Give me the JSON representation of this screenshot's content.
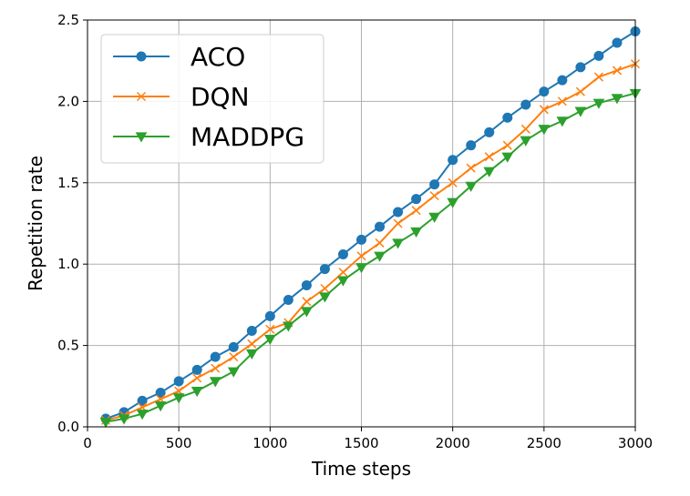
{
  "chart_data": {
    "type": "line",
    "title": "",
    "xlabel": "Time steps",
    "ylabel": "Repetition rate",
    "xlim": [
      0,
      3000
    ],
    "ylim": [
      0,
      2.5
    ],
    "xticks": [
      0,
      500,
      1000,
      1500,
      2000,
      2500,
      3000
    ],
    "xtick_labels": [
      "0",
      "500",
      "1000",
      "1500",
      "2000",
      "2500",
      "3000"
    ],
    "yticks": [
      0,
      0.5,
      1.0,
      1.5,
      2.0,
      2.5
    ],
    "ytick_labels": [
      "0.0",
      "0.5",
      "1.0",
      "1.5",
      "2.0",
      "2.5"
    ],
    "grid": true,
    "legend_position": "top-left",
    "x": [
      100,
      200,
      300,
      400,
      500,
      600,
      700,
      800,
      900,
      1000,
      1100,
      1200,
      1300,
      1400,
      1500,
      1600,
      1700,
      1800,
      1900,
      2000,
      2100,
      2200,
      2300,
      2400,
      2500,
      2600,
      2700,
      2800,
      2900,
      3000
    ],
    "series": [
      {
        "name": "ACO",
        "color": "#1f77b4",
        "marker": "circle",
        "values": [
          0.05,
          0.09,
          0.16,
          0.21,
          0.28,
          0.35,
          0.43,
          0.49,
          0.59,
          0.68,
          0.78,
          0.87,
          0.97,
          1.06,
          1.15,
          1.23,
          1.32,
          1.4,
          1.49,
          1.64,
          1.73,
          1.81,
          1.9,
          1.98,
          2.06,
          2.13,
          2.21,
          2.28,
          2.36,
          2.43
        ]
      },
      {
        "name": "DQN",
        "color": "#ff7f0e",
        "marker": "x",
        "values": [
          0.04,
          0.07,
          0.12,
          0.17,
          0.22,
          0.3,
          0.36,
          0.43,
          0.51,
          0.6,
          0.64,
          0.77,
          0.85,
          0.95,
          1.05,
          1.13,
          1.25,
          1.33,
          1.42,
          1.5,
          1.59,
          1.66,
          1.73,
          1.83,
          1.95,
          2.0,
          2.06,
          2.15,
          2.19,
          2.23
        ]
      },
      {
        "name": "MADDPG",
        "color": "#2ca02c",
        "marker": "triangle-down",
        "values": [
          0.03,
          0.05,
          0.08,
          0.13,
          0.18,
          0.22,
          0.28,
          0.34,
          0.45,
          0.54,
          0.62,
          0.71,
          0.8,
          0.9,
          0.98,
          1.05,
          1.13,
          1.2,
          1.29,
          1.38,
          1.48,
          1.57,
          1.66,
          1.76,
          1.83,
          1.88,
          1.94,
          1.99,
          2.02,
          2.05
        ]
      }
    ]
  }
}
